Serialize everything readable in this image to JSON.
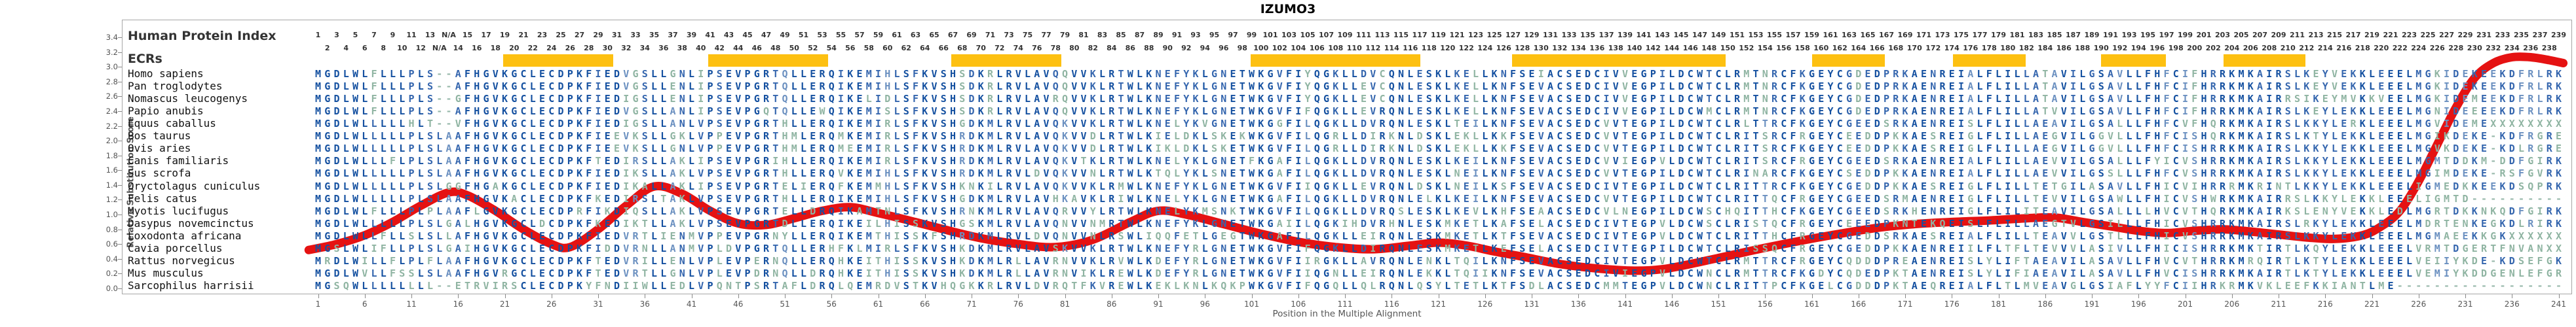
{
  "title": "IZUMO3",
  "y_axis": {
    "label": "Relative Substitution Score",
    "min": 0.0,
    "max": 3.4,
    "step": 0.2
  },
  "x_axis": {
    "label": "Position in the Multiple Alignment",
    "tick_start": 1,
    "tick_step": 5,
    "max": 241
  },
  "header": {
    "row_label": "Human Protein Index",
    "na_label": "N/A",
    "na_columns": [
      14,
      15
    ],
    "index_offset_after_na": 2
  },
  "ecrs": {
    "label": "ECRs",
    "bars": [
      {
        "start": 20.8,
        "end": 32.6
      },
      {
        "start": 42.8,
        "end": 55.6
      },
      {
        "start": 68.8,
        "end": 80.6
      },
      {
        "start": 100.9,
        "end": 119.1
      },
      {
        "start": 128.9,
        "end": 151.8
      },
      {
        "start": 161.0,
        "end": 168.8
      },
      {
        "start": 176.1,
        "end": 183.9
      },
      {
        "start": 192.0,
        "end": 198.9
      },
      {
        "start": 205.1,
        "end": 213.9
      }
    ]
  },
  "alignment": {
    "rows": [
      {
        "species": "Homo sapiens",
        "sequence": "MGDLWLFLLLPLS--AFHGVKGCLECDPKFIEDVGSLLGNLIPSEVPGRTQLLERQIKEMIHLSFKVSHSDKRLRVLAVQQVVKLRTWLKNEFYKLGNETWKGVFIYQGKLLDVCQNLESKLKELLKNFSEIACSEDCIVVEGPILDCWTCLRMTNRCFKGEYCGDEDPRKAENREIALFLILLATAVILGSAVLLFHFCIFHRRKMKAIRSLKEYVEKKLEEELMGKIDEKEEKDFRLRK"
      },
      {
        "species": "Pan troglodytes",
        "sequence": "MGDLWLFLLLPLS--AFHGVKGCLECDPKFIEDVGSLLENLIPSEVPGRTQLLERQIKEMIHLSFKVSHSDKRLRVLAVQQVVKLRTWLKNEFYKLGNETWKGVFIYQGKLLEVCQNLESKLKELLKNFSEVACSEDCIVVEGPILDCWTCLRMTNRCFKGEYCGDEDPRKAENREIALFLILLATAVILGSAVLLFHFCIFHRRKMKAIRSLKEYVEKKLEEELMGKIDEKEEKDFRLRK"
      },
      {
        "species": "Nomascus leucogenys",
        "sequence": "MGDLWLFLLLPLS--GFHGVKGCLECDPKFIEDIGSLLENLIPSEVPGRTQLLERQIKELIDLSFKVSHSDKRLRVLAVRQVVKLRTWLKNEFYKLGNETWKGVFIYQGKLLEVCQNLESKLKELLKNFSEVACSEDCIVVEGPILDCWTCLRMTNRCFKGEYCGDEDPRKAENREIALFLILLATAVILGSAVLLFHFCIFHRRKMKAIRRSIKEYMVKKVEELMGKIDEMEEKDFRLRK"
      },
      {
        "species": "Papio anubis",
        "sequence": "MGDLWLFLLLPLS--AFHGVKGCLECDPKFIEDVGSLLANLIPSEVPGQTQLLEWQIKEMISLSFKVSHSDKRLRVLAVQQVVKLRTWLKNEFYKLGNETWKGVFIFQGKLLEVRQNLESKLKELLKNFSEVACSEDCIVVEGPILDCWMCLRMTNRCFKGEYCGDEDPRKAENREIALFLILLATVVILGSAVLLFHFCIFHRRKMKAIRSLKEYLEKKLEEELMGNIDEEEEKDFRLRK"
      },
      {
        "species": "Equus caballus",
        "sequence": "MGDLWLLLLLHLT--VFHGVKGCLECDPKFIEDIGSLLANLVPSEVPGRTHLLERQIKEMIRLSFKVSHGDKMLRVLAVQKVVKLRTWLKNELYKVGNETWKGGFILQGKLLDVRQNLESKLTEILKNFSEVACSEDCVVTEGPILDCWTCLRLTTRCFKGEYCGEEDSRKAENREISLFLILLAEAVILGSALLLFHFCVFHQRKMKAIRSLKKYLERKLEEELMGVIDEMEXXXXXXXX"
      },
      {
        "species": "Bos taurus",
        "sequence": "MGDLWLLLLLPLSLAAFHGVKGCLECDPKFIEEVKSLLGKLVPPEVPGRTHMLERQMKEMIRLSFKVSHRDKMLRVLAVQKVVDLRTWLKIELDKLSKEKWKGVFILQGRLLDIRKNLDSKLEKLLKKFSEVACSEDCVVTEGPILDCWTCLRITSRCFRGEYCEEDDPKKAESREIGLFLILLAEGVILGGVLLLFHFCISHQRKMKAIRSLKTYLEKKLEEELMGIKDEKE-KDFRGRE"
      },
      {
        "species": "Ovis aries",
        "sequence": "MGDLWLLLLLPLSLAAFHGVKGCLECDPKFIEEVKSLLGNLVPPEVPGRTHMLERQMEEMIRLSFKVSHRDKMLRVLAVQKVVDLRTWLKIKLDKLSKETWKGVFILQGRLLDIRKNLDSKLEKLLKKFSEVACSEDCVVTEGPILDCWTCLRITSRCFKGEYCEEDDPKKAESREIGLFLILLAEGVILGGVLLLFHFCISHRRKMKAIRSLKKYLEKKLEEELMGVKDEKE-KDLRGRE"
      },
      {
        "species": "Canis familiaris",
        "sequence": "MGDLWLLLFLPLSLAAFHGVKGCLECDPKFTEDIRSLLAKLIPSEVPGRIHLLERQIKEMIRLSFKVSHRDKMLRVLAVQKVTKLRTWLKNELYKLGNETFKGAFILQGKLLDVRQNLESKLKEILKNFSEVACSEDCVVIEGPVLDCWTCLRITSRCFRGEYCGEEDSRKAENREIALFLILLAEVVILGSALLLFYICVSHRRKMKAIRSLKKYLEKKLEEELMGMTDDKM-DDFGIRK"
      },
      {
        "species": "Sus scrofa",
        "sequence": "MGDLWLLLLLPLSLAAFHGVKGCLECDPKFIEDIKSLLAKLVPSEVPGRTHLLERQVKEMIHLSFKVSHRDKMLRVLDVQKVVNLRTWLKTQLYKLSNETWKGAFILQGKLLDVRQNLESKLNEILKNFSEVACSEDCVVTEGPILDCWTCLRINARCFKGEYCSEDDPKKAENREIALFLILLAEVVILGSSLLLFHFCVSHRRKMKAIRSLKKYLEKKLEEELMGIMDEKE-RSFGVRK"
      },
      {
        "species": "Oryctolagus cuniculus",
        "sequence": "MGDLWLLLLLPLSLGGFHGAKGCLECDPKFIEDIKALLAKLIPSEVPGRTELIERQFKEMMHLSFKVSHKNKILRVLAVQKVVKLRMWLKNEFYKLGNETWKGVFIIQGKLLEVRQNLDSKLNEILKSFSEVACSEDCIVTEGPILDCWTCLRITTRCFKGEYCGEDDPKKAESREIGLFLILLTETGILASAVLLFHICVIHRRRMKRINTLKKYLEKKLEEELIGMEDKKEEKDSQPRK"
      },
      {
        "species": "Felis catus",
        "sequence": "MGDLWLLLLLPLSLAAFHGVKACLECDPKFKEDIRSLTAKLVPSEVPGRTHLLERQIKEMIHLSFKVSHGDKMLRVLAVHKAVKLRIWLKNELYKLGNETWKGAFILQGKLLDVRQNLELKLKEILKNFSEVACSEDCVVTEGPILDCWTCLRITTQCFRGEYCGEEDSRMAENREIGLFLILLTEVVILGSAWLLFHICVSHWRKMKAIRRSLKKYLEKKLEEELIGMTD----------"
      },
      {
        "species": "Myotis lucifugus",
        "sequence": "MGDLWLFLLLPLPLAAFLGVKGCLECDPRFIKDIQSLLAKLVPSEVPGRTELLDRQIKAMTNLSFKVSHRNKMLRVLAVQRVVYLRTWLKNELYKMSNKTWKGVFILQGKLLDVRQSLESKLKEVLKHFSEAACSEDCVLNEGPILDCWSCHQITTHCFKGEYCGEEDSRKHENREIGLFLILITEAVILGSALLLLHVCVTHQRKMKAIRKSLENYVEKKLEDLMGRTDKKNKQDFGIRK"
      },
      {
        "species": "Dasypus novemcinctus",
        "sequence": "MGDLWLLLLLPLSLGALHGVKGCLDCDPKFKEDIKTLLAKLVPSEVPGRTDLLERQIKEILHISSKVSHGSKMLRVLAVQNVVNMRTWLKNEFYKLGNETWKGAIILQGKIHDVRHNLESKMKETLKAFSELACSEDCIVTEGPVLDCWSCLRISTQCFRGEYCEEEDPKNTEKQEISLFLILLAEGTVLGSILLLFHICVSHRRKMKAIRSLRKYLEKKLEEELMDRTENKEGKDLRIRK"
      },
      {
        "species": "Loxodonta africana",
        "sequence": "MGDLWLLFLLSLSLLAFHGVKGCLECDPKFIEDVRTLIENMVPPEVPGRNYLLERQIKEMTHISSKFSHRDKMLRVLDVQNVVNLRSWLIQQFETLGEGTWKGAFILQGKLLEIRQNLESKMKETLKTFSEVACSEDCIVTEGPVLDCWTCLRITTHCFRGEYCGEDDSRKAESREIALFLILLTEAVVLGSTLLLFHICVSHRRKMKAIRSLKKYLEKKLEEELMGMAEEKKGKXXXXXX"
      },
      {
        "species": "Cavia porcellus",
        "sequence": "MGSLWLIFLLPLSLGAIHGVKGCLECDPKFIDDVRNLLANMVPLDVPGRTQLLERHFKLMIRLSFKVSHKDKMLRVLAVSKVVKLRTWLKNEFYRLGNETWKGVFIFQGKLLDIRQNLESKMKETLKEFSELACSEDCIVTEGPILDCWTCLRISSQCFRGEYCGEDDPKKAENREIILFLTFLTEVVVLASIVLLFHICISHRRKMKTIRTLKQYLEKKLEEELVRMTDGERTFNVANXX"
      },
      {
        "species": "Rattus norvegicus",
        "sequence": "MRDLWILLFLPLFLAAFHGVKGCLECDPKFTEDVRILLENLVPLEVPERNQLLERQHKEITHISSKVSHKDKMLRLLAVRNVVKLRVWLKDEFYRLGNETWKGVFIIRGKLLAVRQNLENKLTQILKNFSEVACSEDCIVTEGPVLDCWTCLRMTTRCFRGEYCQDDDPREAENREISLYLIFTAEAVILASAVLLFHVCVTHRRKMRQIRTLKTYLEKKLEEELVEIIYKDE-KDSEFGK"
      },
      {
        "species": "Mus musculus",
        "sequence": "MGDLWVLLFSSLSLAAFHGVRGCLECDPKFTEDVRTLLGNLVPLEVPDRNQLLDRQHKEITHISSKVSHKDKMLRLLAVRNVIKLREWLKDEFYRLGNETWKGVFIIQGNLLEIRQNLEKKLTQIIKNFSEVACSEDCIVIEGPVLDCWNCLRMTTRCFKGDYCQDEDPKTAENREISLYLIFIAEAVILASAVLLFHVCISHRRKMKAIRTLKTYLEKKLEEELVEMIYKDDGENLEFGR"
      },
      {
        "species": "Sarcophilus harrisii",
        "sequence": "MGSQWLLLLLLLL--ETRVIRSCLECDPKYFNDIIWLLEDLVPQNTPSRTAFLDRQLQEMRDVSTKVHQGKKRLRVLDVRQTFKVREWLKEKLKNLKQKPWKGVFIFQGQLLQLRQNLQSYLTETLKTFSDLACSEDCMMTEGPVLDCWNCLRITTPCFKGELCGDDDPKTAEQREIALFLTLMVEAVGLGSIAFLYYFCIIHRKRMKVKLEEFKKIANTLME------------------"
      }
    ]
  },
  "chart_data": {
    "type": "line",
    "title": "IZUMO3",
    "xlabel": "Position in the Multiple Alignment",
    "ylabel": "Relative Substitution Score",
    "xlim": [
      1,
      241
    ],
    "ylim": [
      0.0,
      3.4
    ],
    "legend_position": "none",
    "grid": false,
    "series": [
      {
        "name": "relative substitution score",
        "points": [
          [
            0,
            0.52
          ],
          [
            3,
            0.6
          ],
          [
            6,
            0.72
          ],
          [
            9,
            0.9
          ],
          [
            12,
            1.12
          ],
          [
            15,
            1.3
          ],
          [
            17,
            1.26
          ],
          [
            20,
            1.05
          ],
          [
            23,
            0.8
          ],
          [
            26,
            0.6
          ],
          [
            28,
            0.56
          ],
          [
            31,
            0.8
          ],
          [
            34,
            1.12
          ],
          [
            37,
            1.38
          ],
          [
            40,
            1.28
          ],
          [
            43,
            1.05
          ],
          [
            46,
            0.88
          ],
          [
            49,
            0.86
          ],
          [
            52,
            0.95
          ],
          [
            55,
            1.05
          ],
          [
            58,
            1.1
          ],
          [
            61,
            1.02
          ],
          [
            64,
            0.93
          ],
          [
            68,
            0.8
          ],
          [
            72,
            0.68
          ],
          [
            76,
            0.6
          ],
          [
            80,
            0.56
          ],
          [
            84,
            0.66
          ],
          [
            88,
            0.9
          ],
          [
            91,
            1.05
          ],
          [
            94,
            1.0
          ],
          [
            98,
            0.87
          ],
          [
            102,
            0.74
          ],
          [
            106,
            0.63
          ],
          [
            110,
            0.56
          ],
          [
            114,
            0.53
          ],
          [
            118,
            0.58
          ],
          [
            121,
            0.62
          ],
          [
            124,
            0.58
          ],
          [
            127,
            0.5
          ],
          [
            130,
            0.43
          ],
          [
            134,
            0.33
          ],
          [
            138,
            0.27
          ],
          [
            142,
            0.24
          ],
          [
            145,
            0.26
          ],
          [
            148,
            0.33
          ],
          [
            152,
            0.44
          ],
          [
            156,
            0.55
          ],
          [
            160,
            0.65
          ],
          [
            164,
            0.74
          ],
          [
            168,
            0.82
          ],
          [
            172,
            0.87
          ],
          [
            176,
            0.9
          ],
          [
            180,
            0.92
          ],
          [
            184,
            0.95
          ],
          [
            187,
            0.96
          ],
          [
            190,
            0.9
          ],
          [
            193,
            0.84
          ],
          [
            196,
            0.78
          ],
          [
            199,
            0.75
          ],
          [
            202,
            0.78
          ],
          [
            205,
            0.8
          ],
          [
            208,
            0.77
          ],
          [
            211,
            0.73
          ],
          [
            214,
            0.69
          ],
          [
            217,
            0.67
          ],
          [
            220,
            0.72
          ],
          [
            222,
            0.84
          ],
          [
            224,
            1.05
          ],
          [
            226,
            1.45
          ],
          [
            228,
            1.95
          ],
          [
            230,
            2.45
          ],
          [
            232,
            2.85
          ],
          [
            234,
            3.05
          ],
          [
            236,
            3.13
          ],
          [
            238,
            3.13
          ],
          [
            240,
            3.09
          ],
          [
            241.5,
            3.05
          ]
        ]
      }
    ]
  },
  "colors": {
    "curve": "#e51212",
    "ecr_bar": "#fdc011",
    "residue_high": "#1450a0",
    "residue_mid": "#3566ae",
    "residue_low": "#6b90c0",
    "residue_mismatch": "#8fb4a2",
    "residue_gap": "#98b9ab",
    "frame": "#a6a6a6",
    "axis_text": "#555555",
    "header_text": "#333333",
    "species_text": "#111111",
    "title_text": "#000000"
  }
}
